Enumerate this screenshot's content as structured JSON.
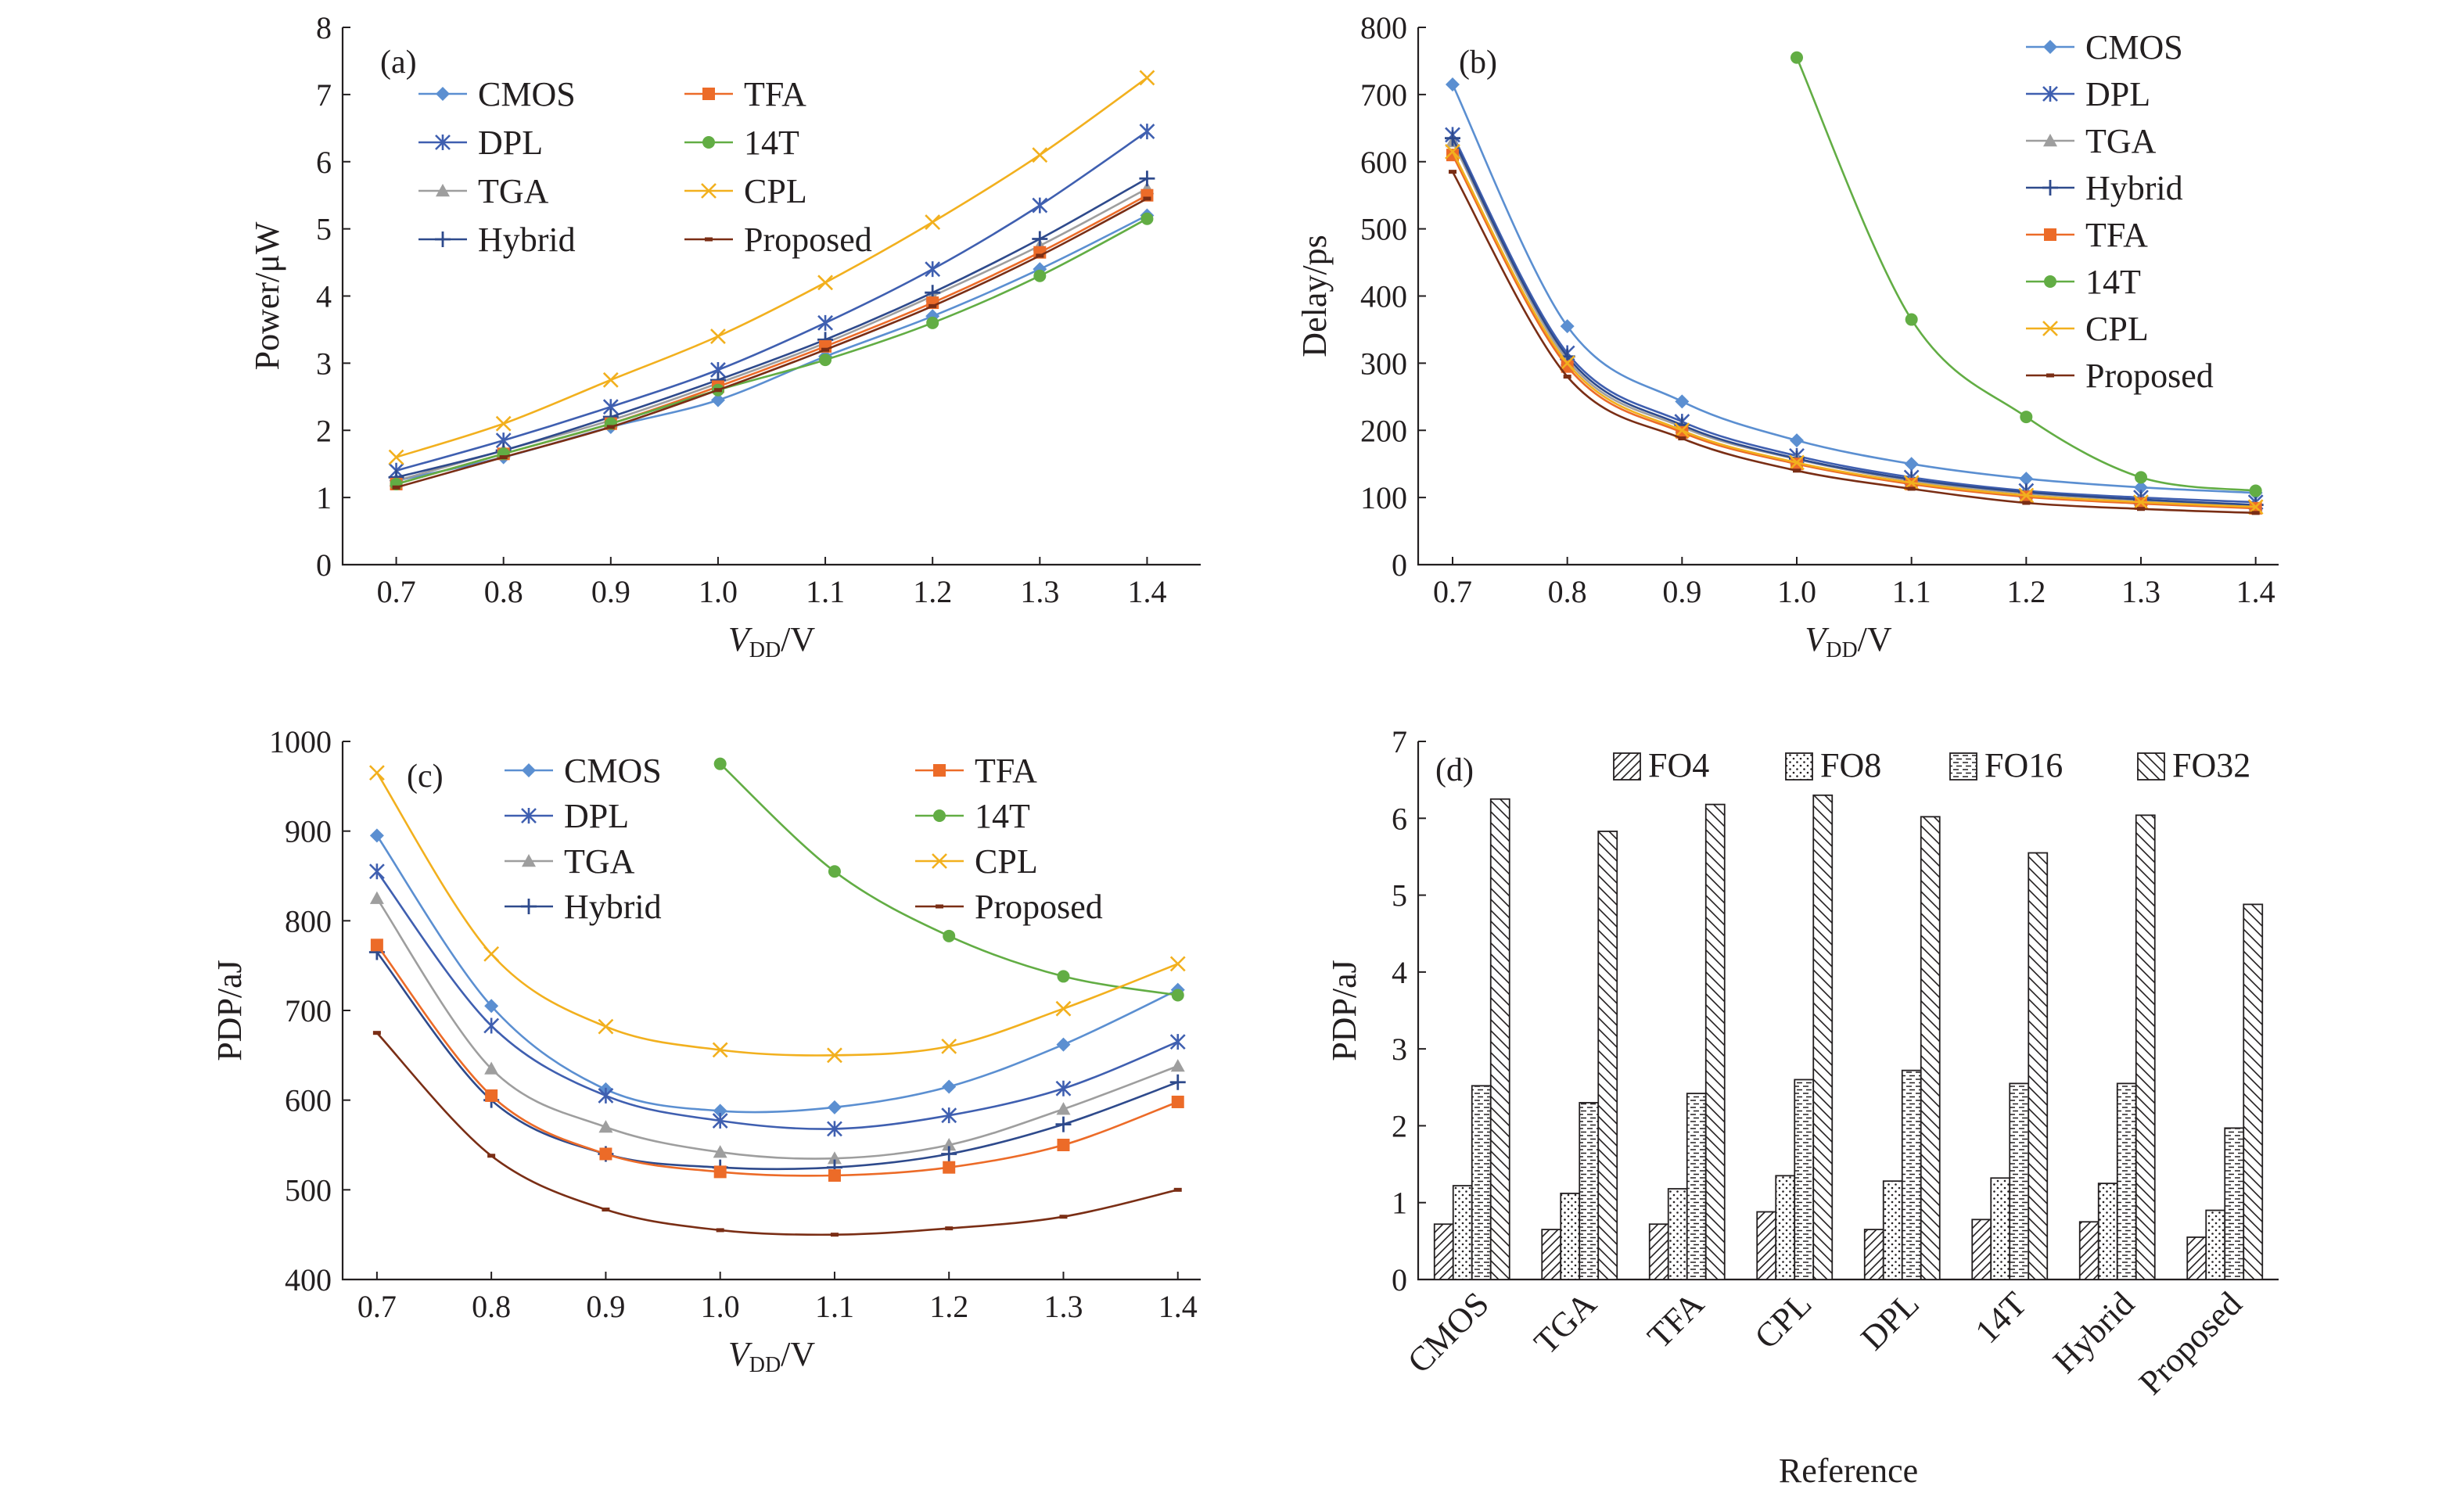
{
  "colors": {
    "CMOS": "#5b8fd1",
    "DPL": "#3f5fb0",
    "TGA": "#9e9e9e",
    "Hybrid": "#2e4a8c",
    "TFA": "#ec6b28",
    "14T": "#62ad44",
    "CPL": "#f2b01e",
    "Proposed": "#7a2e15"
  },
  "chart_data": [
    {
      "type": "line",
      "panel_label": "(a)",
      "xlabel_main": "V",
      "xlabel_sub": "DD",
      "xlabel_unit": "/V",
      "ylabel": "Power/μW",
      "xlim": [
        0.65,
        1.45
      ],
      "ylim": [
        0,
        8
      ],
      "x": [
        0.7,
        0.8,
        0.9,
        1.0,
        1.1,
        1.2,
        1.3,
        1.4
      ],
      "x_ticks": [
        "0.7",
        "0.8",
        "0.9",
        "1.0",
        "1.1",
        "1.2",
        "1.3",
        "1.4"
      ],
      "y_ticks": [
        "0",
        "1",
        "2",
        "3",
        "4",
        "5",
        "6",
        "7",
        "8"
      ],
      "legend_columns": [
        [
          "CMOS",
          "DPL",
          "TGA",
          "Hybrid"
        ],
        [
          "TFA",
          "14T",
          "CPL",
          "Proposed"
        ]
      ],
      "series": [
        {
          "name": "CMOS",
          "marker": "diamond",
          "values": [
            1.25,
            1.6,
            2.05,
            2.45,
            3.1,
            3.7,
            4.4,
            5.2
          ]
        },
        {
          "name": "DPL",
          "marker": "star",
          "values": [
            1.4,
            1.85,
            2.35,
            2.9,
            3.6,
            4.4,
            5.35,
            6.45
          ]
        },
        {
          "name": "TGA",
          "marker": "triangle",
          "values": [
            1.25,
            1.7,
            2.15,
            2.7,
            3.3,
            4.0,
            4.75,
            5.6
          ]
        },
        {
          "name": "Hybrid",
          "marker": "plus",
          "values": [
            1.3,
            1.7,
            2.2,
            2.75,
            3.35,
            4.05,
            4.85,
            5.75
          ]
        },
        {
          "name": "TFA",
          "marker": "square",
          "values": [
            1.2,
            1.65,
            2.1,
            2.65,
            3.25,
            3.9,
            4.65,
            5.5
          ]
        },
        {
          "name": "14T",
          "marker": "circle",
          "values": [
            1.2,
            1.65,
            2.1,
            2.6,
            3.05,
            3.6,
            4.3,
            5.15
          ]
        },
        {
          "name": "CPL",
          "marker": "x",
          "values": [
            1.6,
            2.1,
            2.75,
            3.4,
            4.2,
            5.1,
            6.1,
            7.25
          ]
        },
        {
          "name": "Proposed",
          "marker": "dash",
          "values": [
            1.15,
            1.6,
            2.05,
            2.6,
            3.2,
            3.85,
            4.6,
            5.45
          ]
        }
      ]
    },
    {
      "type": "line",
      "panel_label": "(b)",
      "xlabel_main": "V",
      "xlabel_sub": "DD",
      "xlabel_unit": "/V",
      "ylabel": "Delay/ps",
      "xlim": [
        0.67,
        1.42
      ],
      "ylim": [
        0,
        800
      ],
      "x_ticks": [
        "0.7",
        "0.8",
        "0.9",
        "1.0",
        "1.1",
        "1.2",
        "1.3",
        "1.4"
      ],
      "y_ticks": [
        "0",
        "100",
        "200",
        "300",
        "400",
        "500",
        "600",
        "700",
        "800"
      ],
      "legend_columns": [
        [
          "CMOS",
          "DPL",
          "TGA",
          "Hybrid",
          "TFA",
          "14T",
          "CPL",
          "Proposed"
        ]
      ],
      "series": [
        {
          "name": "CMOS",
          "marker": "diamond",
          "x": [
            0.7,
            0.8,
            0.9,
            1.0,
            1.1,
            1.2,
            1.3,
            1.4
          ],
          "values": [
            715,
            355,
            243,
            185,
            150,
            128,
            115,
            107
          ]
        },
        {
          "name": "DPL",
          "marker": "star",
          "x": [
            0.7,
            0.8,
            0.9,
            1.0,
            1.1,
            1.2,
            1.3,
            1.4
          ],
          "values": [
            640,
            315,
            213,
            162,
            130,
            110,
            100,
            93
          ]
        },
        {
          "name": "TGA",
          "marker": "triangle",
          "x": [
            0.7,
            0.8,
            0.9,
            1.0,
            1.1,
            1.2,
            1.3,
            1.4
          ],
          "values": [
            630,
            305,
            205,
            157,
            125,
            106,
            96,
            88
          ]
        },
        {
          "name": "Hybrid",
          "marker": "plus",
          "x": [
            0.7,
            0.8,
            0.9,
            1.0,
            1.1,
            1.2,
            1.3,
            1.4
          ],
          "values": [
            635,
            310,
            208,
            158,
            127,
            108,
            97,
            89
          ]
        },
        {
          "name": "TFA",
          "marker": "square",
          "x": [
            0.7,
            0.8,
            0.9,
            1.0,
            1.1,
            1.2,
            1.3,
            1.4
          ],
          "values": [
            610,
            295,
            197,
            150,
            120,
            101,
            91,
            84
          ]
        },
        {
          "name": "14T",
          "marker": "circle",
          "x": [
            1.0,
            1.1,
            1.2,
            1.3,
            1.4
          ],
          "values": [
            755,
            365,
            220,
            130,
            110
          ]
        },
        {
          "name": "CPL",
          "marker": "x",
          "x": [
            0.7,
            0.8,
            0.9,
            1.0,
            1.1,
            1.2,
            1.3,
            1.4
          ],
          "values": [
            615,
            300,
            200,
            152,
            122,
            103,
            93,
            86
          ]
        },
        {
          "name": "Proposed",
          "marker": "dash",
          "x": [
            0.7,
            0.8,
            0.9,
            1.0,
            1.1,
            1.2,
            1.3,
            1.4
          ],
          "values": [
            585,
            280,
            188,
            140,
            113,
            92,
            83,
            77
          ]
        }
      ]
    },
    {
      "type": "line",
      "panel_label": "(c)",
      "xlabel_main": "V",
      "xlabel_sub": "DD",
      "xlabel_unit": "/V",
      "ylabel": "PDP/aJ",
      "xlim": [
        0.67,
        1.42
      ],
      "ylim": [
        400,
        1000
      ],
      "x_ticks": [
        "0.7",
        "0.8",
        "0.9",
        "1.0",
        "1.1",
        "1.2",
        "1.3",
        "1.4"
      ],
      "y_ticks": [
        "400",
        "500",
        "600",
        "700",
        "800",
        "900",
        "1000"
      ],
      "legend_columns": [
        [
          "CMOS",
          "DPL",
          "TGA",
          "Hybrid"
        ],
        [
          "TFA",
          "14T",
          "CPL",
          "Proposed"
        ]
      ],
      "series": [
        {
          "name": "CMOS",
          "marker": "diamond",
          "x": [
            0.7,
            0.8,
            0.9,
            1.0,
            1.1,
            1.2,
            1.3,
            1.4
          ],
          "values": [
            895,
            705,
            612,
            588,
            592,
            615,
            662,
            723
          ]
        },
        {
          "name": "DPL",
          "marker": "star",
          "x": [
            0.7,
            0.8,
            0.9,
            1.0,
            1.1,
            1.2,
            1.3,
            1.4
          ],
          "values": [
            855,
            683,
            605,
            577,
            568,
            583,
            613,
            665
          ]
        },
        {
          "name": "TGA",
          "marker": "triangle",
          "x": [
            0.7,
            0.8,
            0.9,
            1.0,
            1.1,
            1.2,
            1.3,
            1.4
          ],
          "values": [
            825,
            635,
            570,
            542,
            535,
            550,
            590,
            638
          ]
        },
        {
          "name": "Hybrid",
          "marker": "plus",
          "x": [
            0.7,
            0.8,
            0.9,
            1.0,
            1.1,
            1.2,
            1.3,
            1.4
          ],
          "values": [
            765,
            600,
            540,
            525,
            525,
            540,
            573,
            620
          ]
        },
        {
          "name": "TFA",
          "marker": "square",
          "x": [
            0.7,
            0.8,
            0.9,
            1.0,
            1.1,
            1.2,
            1.3,
            1.4
          ],
          "values": [
            773,
            605,
            540,
            520,
            516,
            525,
            550,
            598
          ]
        },
        {
          "name": "14T",
          "marker": "circle",
          "x": [
            1.0,
            1.1,
            1.2,
            1.3,
            1.4
          ],
          "values": [
            975,
            855,
            783,
            738,
            717
          ]
        },
        {
          "name": "CPL",
          "marker": "x",
          "x": [
            0.7,
            0.8,
            0.9,
            1.0,
            1.1,
            1.2,
            1.3,
            1.4
          ],
          "values": [
            965,
            763,
            682,
            656,
            650,
            660,
            702,
            752
          ]
        },
        {
          "name": "Proposed",
          "marker": "dash",
          "x": [
            0.7,
            0.8,
            0.9,
            1.0,
            1.1,
            1.2,
            1.3,
            1.4
          ],
          "values": [
            675,
            538,
            478,
            455,
            450,
            457,
            470,
            500
          ]
        }
      ]
    },
    {
      "type": "bar",
      "panel_label": "(d)",
      "xlabel": "Reference",
      "ylabel": "PDP/aJ",
      "ylim": [
        0,
        7
      ],
      "y_ticks": [
        "0",
        "1",
        "2",
        "3",
        "4",
        "5",
        "6",
        "7"
      ],
      "categories": [
        "CMOS",
        "TGA",
        "TFA",
        "CPL",
        "DPL",
        "14T",
        "Hybrid",
        "Proposed"
      ],
      "series": [
        {
          "name": "FO4",
          "pattern": "diag",
          "values": [
            0.72,
            0.65,
            0.72,
            0.88,
            0.65,
            0.78,
            0.75,
            0.55
          ]
        },
        {
          "name": "FO8",
          "pattern": "dots",
          "values": [
            1.22,
            1.12,
            1.18,
            1.35,
            1.28,
            1.32,
            1.25,
            0.9
          ]
        },
        {
          "name": "FO16",
          "pattern": "hlines",
          "values": [
            2.52,
            2.3,
            2.42,
            2.6,
            2.72,
            2.55,
            2.55,
            1.97
          ]
        },
        {
          "name": "FO32",
          "pattern": "bdiag",
          "values": [
            6.25,
            5.83,
            6.18,
            6.3,
            6.02,
            5.55,
            6.04,
            4.88
          ]
        }
      ]
    }
  ]
}
